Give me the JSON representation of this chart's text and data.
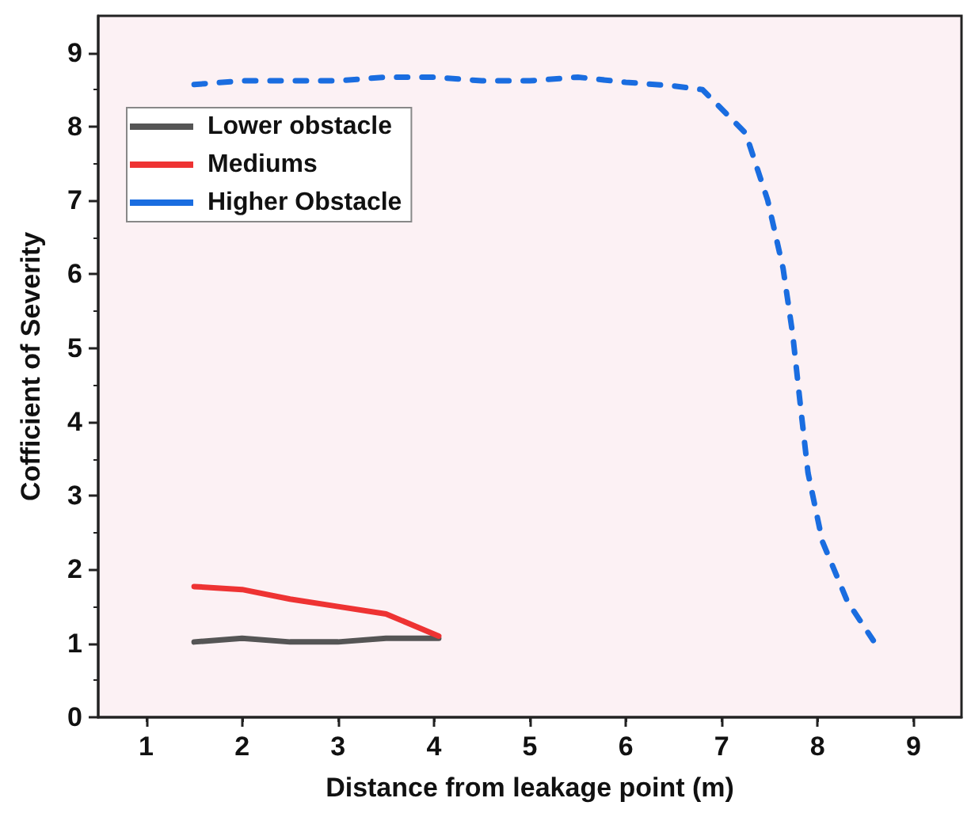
{
  "chart_data": {
    "type": "line",
    "xlabel": "Distance from leakage point (m)",
    "ylabel": "Cofficient of Severity",
    "xlim": [
      0.5,
      9.5
    ],
    "xticks": [
      1,
      2,
      3,
      4,
      5,
      6,
      7,
      8,
      9
    ],
    "ylim": [
      0,
      9.5
    ],
    "yticks": [
      0,
      1,
      2,
      3,
      4,
      5,
      6,
      7,
      8,
      9
    ],
    "grid": false,
    "legend": "top left",
    "marker": "none",
    "series": [
      {
        "name": "Lower obstacle",
        "color": "#555555",
        "line_style": "solid",
        "x": [
          1.5,
          2,
          2.5,
          3,
          3.5,
          4.05
        ],
        "values": [
          1.02,
          1.07,
          1.02,
          1.02,
          1.07,
          1.07
        ]
      },
      {
        "name": "Mediums",
        "color": "#ee3333",
        "line_style": "solid",
        "x": [
          1.5,
          2,
          2.5,
          3,
          3.5,
          4.05
        ],
        "values": [
          1.77,
          1.73,
          1.6,
          1.5,
          1.4,
          1.1
        ]
      },
      {
        "name": "Higher Obstacle",
        "color": "#1a6de0",
        "line_style": "dashed",
        "x": [
          1.5,
          2,
          2.5,
          3,
          3.5,
          4,
          4.5,
          5,
          5.5,
          6,
          6.5,
          6.8,
          7.25,
          7.48,
          7.64,
          7.74,
          7.82,
          7.9,
          8.05,
          8.31,
          8.58
        ],
        "values": [
          8.57,
          8.62,
          8.62,
          8.62,
          8.67,
          8.67,
          8.62,
          8.62,
          8.67,
          8.6,
          8.55,
          8.5,
          7.91,
          7.0,
          6.08,
          5.19,
          4.23,
          3.31,
          2.38,
          1.57,
          1.04
        ]
      }
    ]
  }
}
